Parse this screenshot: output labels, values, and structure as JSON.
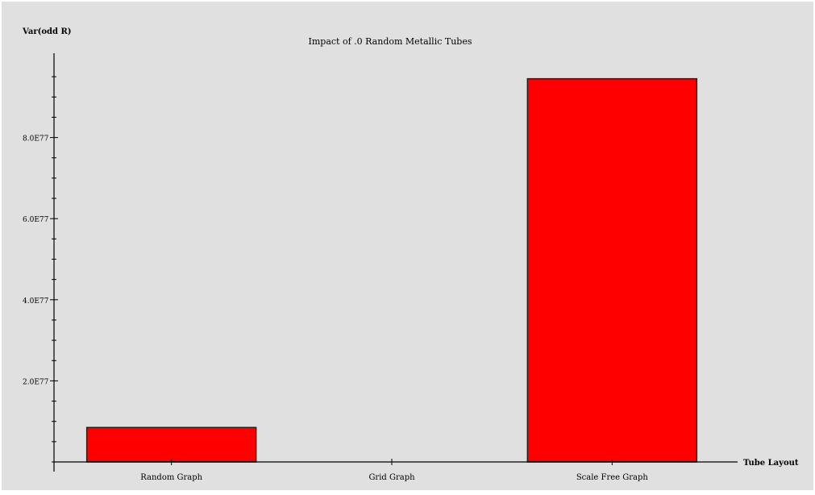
{
  "chart_data": {
    "type": "bar",
    "title": "Impact of .0 Random Metallic Tubes",
    "ylabel": "Var(odd R)",
    "xlabel": "Tube Layout",
    "categories": [
      "Random Graph",
      "Grid Graph",
      "Scale Free Graph"
    ],
    "values": [
      8.5e+76,
      0,
      9.45e+77
    ],
    "ylim": [
      0,
      1e+78
    ],
    "yticks": [
      2e+77,
      4e+77,
      6e+77,
      8e+77
    ],
    "ytick_labels": [
      "2.0E77",
      "4.0E77",
      "6.0E77",
      "8.0E77"
    ],
    "grid": false,
    "legend": "none",
    "colors": {
      "bar_fill": "#ff0000",
      "bar_stroke": "#222222",
      "plot_background": "#e0e0e0",
      "axis": "#000000"
    }
  }
}
